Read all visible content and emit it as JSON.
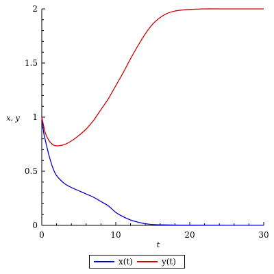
{
  "chart_data": {
    "type": "line",
    "xlabel": "t",
    "ylabel": "x, y",
    "xlim": [
      0,
      30
    ],
    "ylim": [
      0,
      2
    ],
    "xticks": [
      0,
      10,
      20,
      30
    ],
    "yticks": [
      0,
      0.5,
      1,
      1.5,
      2
    ],
    "ytick_labels": [
      "0",
      "0.5",
      "1",
      "1.5",
      "2"
    ],
    "grid": false,
    "legend_position": "bottom",
    "series": [
      {
        "name": "x(t)",
        "color": "#0000cc",
        "x": [
          0,
          0.25,
          0.5,
          1,
          1.5,
          2,
          3,
          4,
          5,
          6,
          7,
          8,
          9,
          10,
          11,
          12,
          13,
          14,
          15,
          16,
          18,
          20,
          25,
          30
        ],
        "y": [
          1.0,
          0.86,
          0.78,
          0.64,
          0.53,
          0.46,
          0.39,
          0.35,
          0.32,
          0.29,
          0.26,
          0.22,
          0.18,
          0.12,
          0.08,
          0.05,
          0.03,
          0.015,
          0.008,
          0.005,
          0.003,
          0.002,
          0.001,
          0.001
        ]
      },
      {
        "name": "y(t)",
        "color": "#cc0000",
        "x": [
          0,
          0.25,
          0.5,
          1,
          1.5,
          2,
          3,
          4,
          5,
          6,
          7,
          8,
          9,
          10,
          11,
          12,
          13,
          14,
          15,
          16,
          17,
          18,
          19,
          20,
          22,
          24,
          26,
          28,
          30
        ],
        "y": [
          1.0,
          0.92,
          0.85,
          0.78,
          0.745,
          0.735,
          0.745,
          0.78,
          0.83,
          0.89,
          0.97,
          1.07,
          1.17,
          1.29,
          1.41,
          1.54,
          1.66,
          1.77,
          1.86,
          1.92,
          1.96,
          1.98,
          1.99,
          1.995,
          2.0,
          2.0,
          2.0,
          2.0,
          2.0
        ]
      }
    ]
  }
}
